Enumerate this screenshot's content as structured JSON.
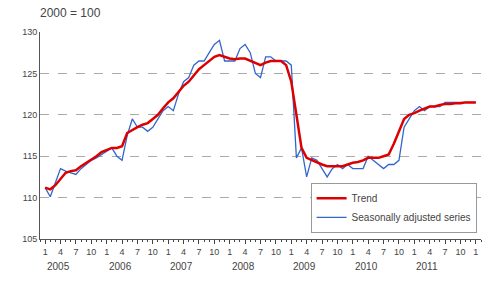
{
  "chart_data": {
    "type": "line",
    "title": "2000 = 100",
    "categories": [
      "1",
      null,
      null,
      "4",
      null,
      null,
      "7",
      null,
      null,
      "10",
      null,
      null,
      "1",
      null,
      null,
      "4",
      null,
      null,
      "7",
      null,
      null,
      "10",
      null,
      null,
      "1",
      null,
      null,
      "4",
      null,
      null,
      "7",
      null,
      null,
      "10",
      null,
      null,
      "1",
      null,
      null,
      "4",
      null,
      null,
      "7",
      null,
      null,
      "10",
      null,
      null,
      "1",
      null,
      null,
      "4",
      null,
      null,
      "7",
      null,
      null,
      "10",
      null,
      null,
      "1",
      null,
      null,
      "4",
      null,
      null,
      "7",
      null,
      null,
      "10",
      null,
      null,
      "1",
      null,
      null,
      "4",
      null,
      null,
      "7",
      null,
      null,
      "10",
      null,
      null,
      "1"
    ],
    "series": [
      {
        "name": "Seasonally adjusted series",
        "color": "#3366cc",
        "values": [
          111.2,
          110.1,
          111.8,
          113.5,
          113.2,
          113.0,
          112.8,
          113.5,
          114.0,
          114.5,
          114.8,
          115.2,
          115.5,
          116.0,
          115.0,
          114.5,
          117.5,
          119.5,
          118.5,
          118.5,
          118.0,
          118.5,
          119.5,
          120.5,
          121.0,
          120.5,
          122.5,
          124.0,
          124.5,
          126.0,
          126.5,
          126.5,
          127.5,
          128.5,
          129.0,
          126.5,
          126.5,
          126.5,
          128.0,
          128.5,
          127.5,
          125.0,
          124.5,
          127.0,
          127.0,
          126.5,
          126.5,
          126.5,
          126.0,
          114.8,
          116.0,
          112.5,
          114.8,
          114.5,
          113.5,
          112.5,
          113.5,
          114.0,
          113.5,
          114.0,
          113.5,
          113.5,
          113.5,
          115.0,
          114.5,
          114.0,
          113.5,
          114.0,
          114.0,
          114.5,
          118.5,
          119.5,
          120.5,
          121.0,
          120.5,
          121.0,
          121.0,
          121.0,
          121.5,
          121.5,
          121.5,
          121.5,
          121.5,
          121.5,
          121.5
        ]
      },
      {
        "name": "Trend",
        "color": "#dd0000",
        "values": [
          111.2,
          111.0,
          111.5,
          112.3,
          113.0,
          113.2,
          113.3,
          113.8,
          114.2,
          114.5,
          115.0,
          115.5,
          115.8,
          116.0,
          116.0,
          116.2,
          117.8,
          118.2,
          118.5,
          118.8,
          119.0,
          119.5,
          120.0,
          120.8,
          121.5,
          122.0,
          122.8,
          123.5,
          124.0,
          124.8,
          125.5,
          126.0,
          126.5,
          127.0,
          127.2,
          127.0,
          126.8,
          126.7,
          126.8,
          126.8,
          126.5,
          126.2,
          126.0,
          126.3,
          126.5,
          126.5,
          126.5,
          126.0,
          124.0,
          120.0,
          116.0,
          114.8,
          114.5,
          114.3,
          114.0,
          113.8,
          113.8,
          113.8,
          113.8,
          114.0,
          114.2,
          114.3,
          114.5,
          114.8,
          114.8,
          114.8,
          115.0,
          115.2,
          116.5,
          118.0,
          119.5,
          120.0,
          120.2,
          120.5,
          120.8,
          121.0,
          121.0,
          121.2,
          121.3,
          121.3,
          121.4,
          121.4,
          121.5,
          121.5,
          121.5
        ]
      }
    ],
    "annotations": [
      {
        "text": "2005",
        "x": 0
      },
      {
        "text": "2006",
        "x": 12
      },
      {
        "text": "2007",
        "x": 24
      },
      {
        "text": "2008",
        "x": 36
      },
      {
        "text": "2009",
        "x": 48
      },
      {
        "text": "2010",
        "x": 60
      },
      {
        "text": "2011",
        "x": 72
      }
    ],
    "ylim": [
      105,
      130
    ],
    "yticks": [
      105,
      110,
      115,
      120,
      125,
      130
    ],
    "grid": true,
    "legend": "lower right"
  }
}
